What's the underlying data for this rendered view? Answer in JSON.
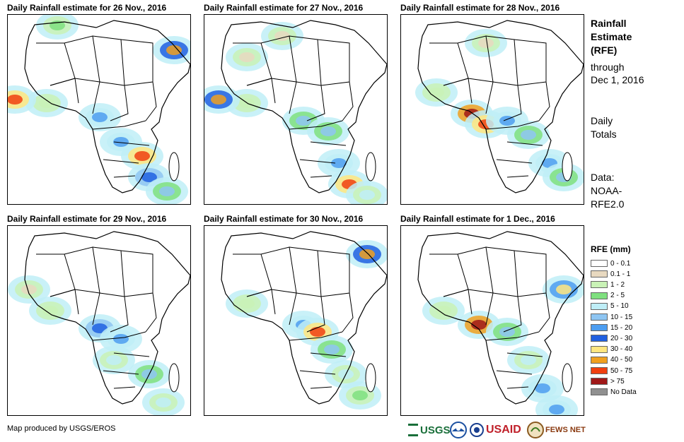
{
  "panels": [
    {
      "title": "Daily Rainfall estimate for 26 Nov., 2016"
    },
    {
      "title": "Daily Rainfall estimate for 27 Nov., 2016"
    },
    {
      "title": "Daily Rainfall estimate for 28 Nov., 2016"
    },
    {
      "title": "Daily Rainfall estimate for 29 Nov., 2016"
    },
    {
      "title": "Daily Rainfall estimate for 30 Nov., 2016"
    },
    {
      "title": "Daily Rainfall estimate for 1 Dec., 2016"
    }
  ],
  "side": {
    "heading1": "Rainfall",
    "heading2": "Estimate",
    "heading3": "(RFE)",
    "through1": "through",
    "through2": "Dec 1, 2016",
    "daily1": "Daily",
    "daily2": "Totals",
    "data1": "Data:",
    "data2": "NOAA-",
    "data3": "RFE2.0"
  },
  "legend": {
    "title": "RFE (mm)",
    "items": [
      {
        "label": "0 - 0.1",
        "color": "#ffffff"
      },
      {
        "label": "0.1 - 1",
        "color": "#e8d9c0"
      },
      {
        "label": "1 - 2",
        "color": "#c9f2b6"
      },
      {
        "label": "2 - 5",
        "color": "#7fe07f"
      },
      {
        "label": "5 - 10",
        "color": "#bfeef7"
      },
      {
        "label": "10 - 15",
        "color": "#8ec5f2"
      },
      {
        "label": "15 - 20",
        "color": "#4d9df0"
      },
      {
        "label": "20 - 30",
        "color": "#2060e0"
      },
      {
        "label": "30 - 40",
        "color": "#ffe680"
      },
      {
        "label": "40 - 50",
        "color": "#f0a020"
      },
      {
        "label": "50 - 75",
        "color": "#f04010"
      },
      {
        "label": "> 75",
        "color": "#a01818"
      },
      {
        "label": "No Data",
        "color": "#909090"
      }
    ]
  },
  "credit": "Map produced by USGS/EROS",
  "logos": {
    "usgs": "USGS",
    "noaa": "NOAA",
    "usaid": "USAID",
    "fewsnet": "FEWS NET"
  }
}
